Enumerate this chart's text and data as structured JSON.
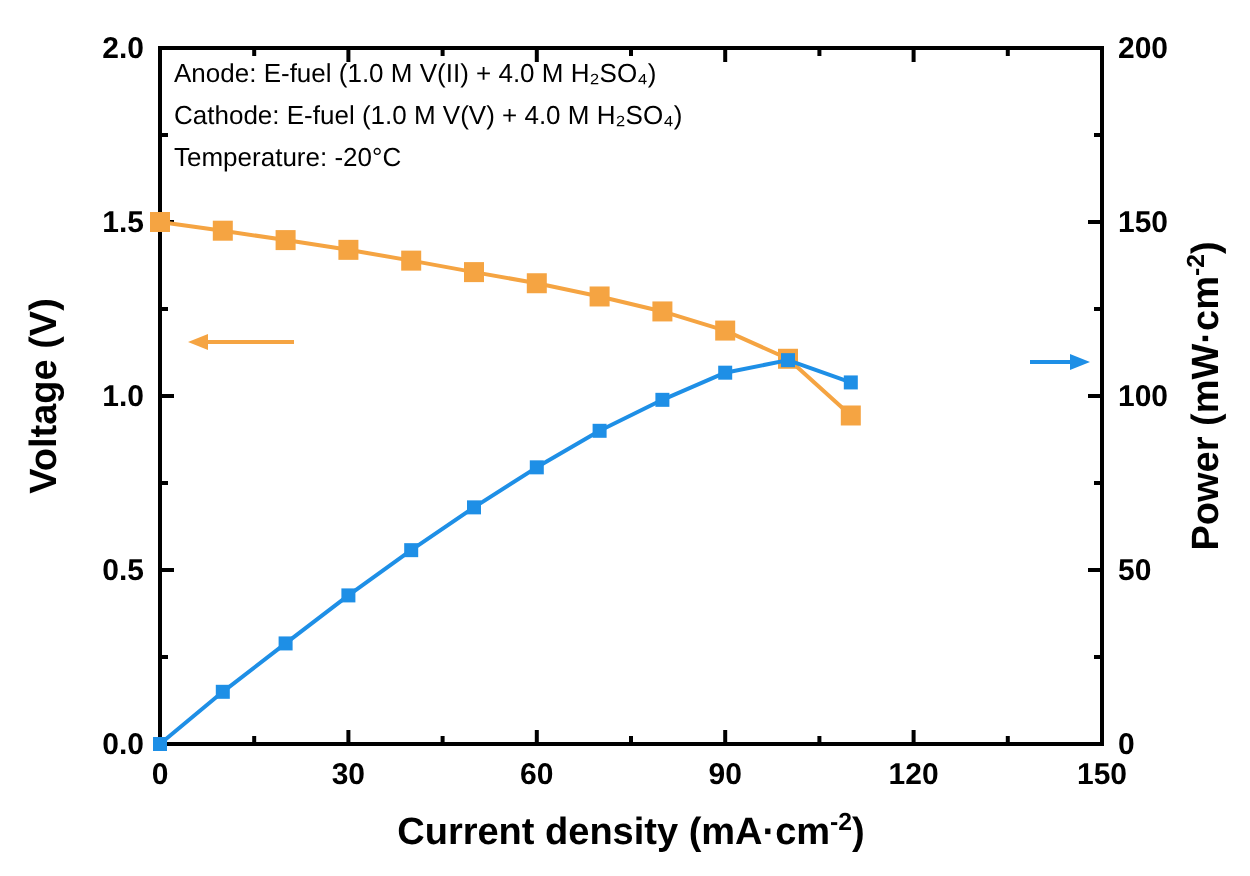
{
  "chart_data": {
    "type": "line",
    "xlabel": "Current density (mA·cm$^{-2}$)",
    "ylabel": "Voltage (V)",
    "y2label": "Power (mW·cm$^{-2}$)",
    "x": [
      0,
      10,
      20,
      30,
      40,
      50,
      60,
      70,
      80,
      90,
      100,
      110
    ],
    "series": [
      {
        "color": "#f5a442",
        "values": [
          1.5,
          1.475,
          1.448,
          1.42,
          1.389,
          1.356,
          1.324,
          1.286,
          1.243,
          1.188,
          1.107,
          0.944
        ]
      },
      {
        "color": "#1e8fe6",
        "axis": "y2",
        "values": [
          0,
          15.0,
          28.9,
          42.7,
          55.7,
          68.0,
          79.5,
          90.0,
          98.9,
          106.7,
          110.3,
          103.9
        ]
      }
    ],
    "xlim": [
      0,
      150
    ],
    "xticks": [
      0,
      {
        "value": 15,
        "label": null
      },
      30,
      {
        "value": 45,
        "label": null
      },
      60,
      {
        "value": 75,
        "label": null
      },
      90,
      {
        "value": 105,
        "label": null
      },
      120,
      {
        "value": 135,
        "label": null
      },
      150
    ],
    "ylim": [
      0,
      2
    ],
    "yticks": [
      {
        "value": 0,
        "label": "0.0"
      },
      {
        "value": 0.25,
        "label": null
      },
      {
        "value": 0.5,
        "label": "0.5"
      },
      {
        "value": 0.75,
        "label": null
      },
      {
        "value": 1,
        "label": "1.0"
      },
      {
        "value": 1.25,
        "label": null
      },
      {
        "value": 1.5,
        "label": "1.5"
      },
      {
        "value": 1.75,
        "label": null
      },
      {
        "value": 2,
        "label": "2.0"
      }
    ],
    "y2lim": [
      0,
      200
    ],
    "y2ticks": [
      0,
      {
        "value": 25,
        "label": null
      },
      50,
      {
        "value": 75,
        "label": null
      },
      100,
      {
        "value": 125,
        "label": null
      },
      150,
      {
        "value": 175,
        "label": null
      },
      200
    ],
    "annotations": [
      "Anode: E-fuel (1.0 M V(II) + 4.0 M H₂SO₄)",
      "Cathode: E-fuel (1.0 M V(V) + 4.0 M H₂SO₄)",
      "Temperature: -20°C"
    ],
    "marker": "square",
    "line_style": "solid",
    "grid": false
  }
}
